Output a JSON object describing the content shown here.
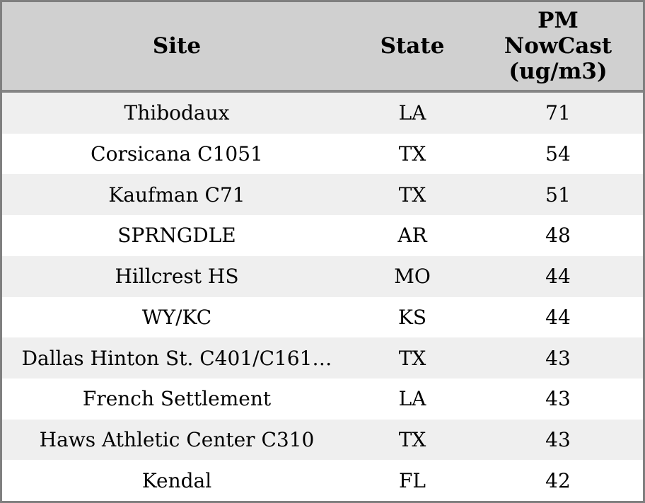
{
  "chart_data": {
    "type": "table",
    "title": "",
    "columns": [
      "Site",
      "State",
      "PM NowCast (ug/m3)"
    ],
    "rows": [
      [
        "Thibodaux",
        "LA",
        71
      ],
      [
        "Corsicana C1051",
        "TX",
        54
      ],
      [
        "Kaufman C71",
        "TX",
        51
      ],
      [
        "SPRNGDLE",
        "AR",
        48
      ],
      [
        "Hillcrest HS",
        "MO",
        44
      ],
      [
        "WY/KC",
        "KS",
        44
      ],
      [
        "Dallas Hinton St. C401/C161…",
        "TX",
        43
      ],
      [
        "French Settlement",
        "LA",
        43
      ],
      [
        "Haws Athletic Center C310",
        "TX",
        43
      ],
      [
        "Kendal",
        "FL",
        42
      ]
    ],
    "layout_hints": {
      "header_background": "#d0d0d0",
      "alternating_rows": true,
      "first_data_row_shaded": true,
      "cell_alignment": "center"
    }
  },
  "header": {
    "site": "Site",
    "state": "State",
    "pm_line1": "PM",
    "pm_line2": "NowCast",
    "pm_line3": "(ug/m3)"
  },
  "colors": {
    "border": "#7f7f7f",
    "separator": "#858585",
    "header_bg": "#d0d0d0",
    "row_alt_bg": "#efefef",
    "row_bg": "#ffffff",
    "text": "#000000"
  }
}
